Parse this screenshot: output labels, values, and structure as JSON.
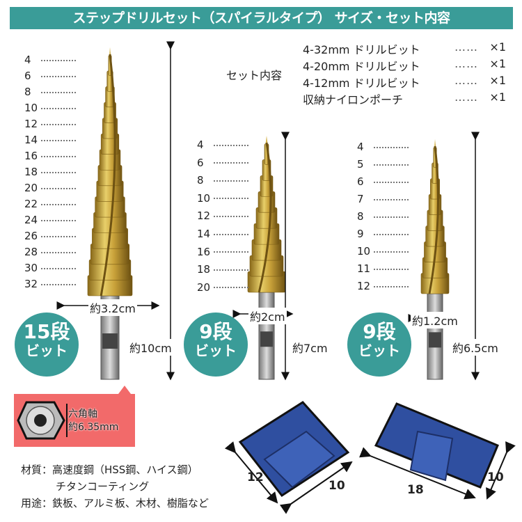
{
  "header": {
    "title": "ステップドリルセット（スパイラルタイプ） サイズ・セット内容"
  },
  "set_contents": {
    "label": "セット内容",
    "dots": "……",
    "items": [
      {
        "name": "4-32mm ドリルビット",
        "qty": "×1"
      },
      {
        "name": "4-20mm ドリルビット",
        "qty": "×1"
      },
      {
        "name": "4-12mm ドリルビット",
        "qty": "×1"
      },
      {
        "name": "収納ナイロンポーチ",
        "qty": "×1"
      }
    ]
  },
  "drills": [
    {
      "steps": [
        "4",
        "6",
        "8",
        "10",
        "12",
        "14",
        "16",
        "18",
        "20",
        "22",
        "24",
        "26",
        "28",
        "30",
        "32"
      ],
      "width": "約3.2cm",
      "length": "約10cm",
      "badge_top": "15段",
      "badge_bottom": "ビット"
    },
    {
      "steps": [
        "4",
        "6",
        "8",
        "10",
        "12",
        "14",
        "16",
        "18",
        "20"
      ],
      "width": "約2cm",
      "length": "約7cm",
      "badge_top": "9段",
      "badge_bottom": "ビット"
    },
    {
      "steps": [
        "4",
        "5",
        "6",
        "7",
        "8",
        "9",
        "10",
        "11",
        "12"
      ],
      "width": "約1.2cm",
      "length": "約6.5cm",
      "badge_top": "9段",
      "badge_bottom": "ビット"
    }
  ],
  "shank": {
    "label": "六角軸",
    "size": "約6.35mm"
  },
  "specs": {
    "material": "材質：高速度鋼（HSS鋼、ハイス鋼）",
    "coating": "チタンコーティング",
    "usage": "用途：鉄板、アルミ板、木材、樹脂など"
  },
  "pouches": [
    {
      "w": "12",
      "h": "10"
    },
    {
      "w": "18",
      "h": "10"
    }
  ],
  "colors": {
    "accent": "#3a9c98",
    "callout": "#f26a6a",
    "gold": "#c9a23a",
    "pouch": "#2f4fa0"
  }
}
